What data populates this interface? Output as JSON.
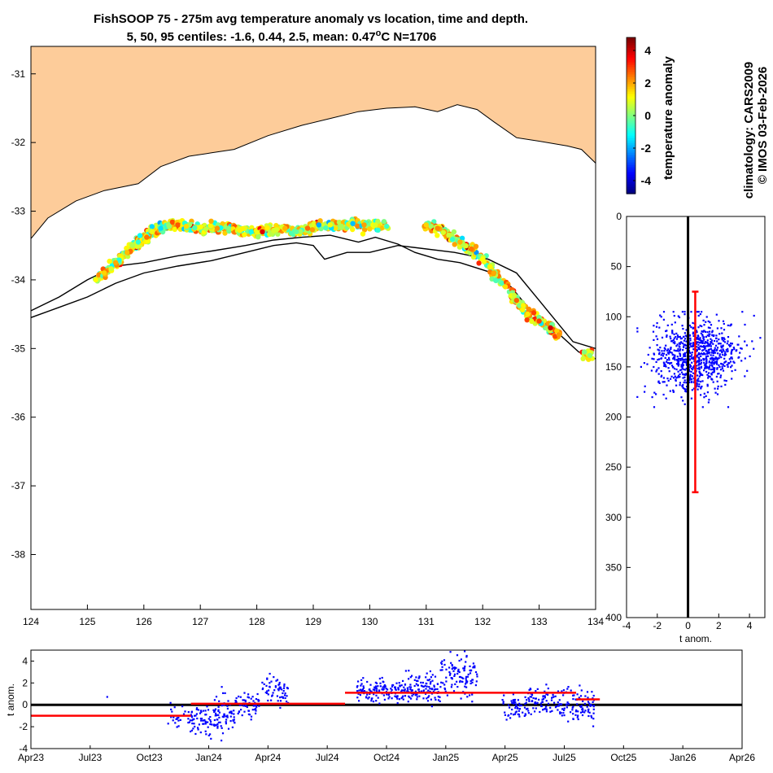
{
  "chart_data": [
    {
      "id": "map",
      "type": "scatter",
      "title": "FishSOOP 75 - 275m avg temperature anomaly vs location, time and depth.",
      "subtitle_prefix": "5, 50, 95 centiles: -1.6, 0.44, 2.5, mean: 0.47",
      "subtitle_sup": "o",
      "subtitle_suffix": "C N=1706",
      "xlabel": "",
      "ylabel": "",
      "xlim": [
        124,
        134
      ],
      "ylim": [
        -38.8,
        -30.6
      ],
      "xticks": [
        "124",
        "125",
        "126",
        "127",
        "128",
        "129",
        "130",
        "131",
        "132",
        "133",
        "134"
      ],
      "yticks": [
        "-31",
        "-32",
        "-33",
        "-34",
        "-35",
        "-36",
        "-37",
        "-38"
      ],
      "land_color": "#fdcc9a",
      "coastline": [
        [
          124,
          -33.4
        ],
        [
          124.3,
          -33.1
        ],
        [
          124.8,
          -32.85
        ],
        [
          125.3,
          -32.7
        ],
        [
          125.9,
          -32.6
        ],
        [
          126.3,
          -32.35
        ],
        [
          126.8,
          -32.2
        ],
        [
          127.2,
          -32.15
        ],
        [
          127.6,
          -32.1
        ],
        [
          128.2,
          -31.9
        ],
        [
          128.8,
          -31.75
        ],
        [
          129.3,
          -31.65
        ],
        [
          129.8,
          -31.55
        ],
        [
          130.3,
          -31.5
        ],
        [
          130.8,
          -31.48
        ],
        [
          131.2,
          -31.55
        ],
        [
          131.55,
          -31.45
        ],
        [
          131.9,
          -31.52
        ],
        [
          132.2,
          -31.7
        ],
        [
          132.6,
          -31.93
        ],
        [
          133.0,
          -31.98
        ],
        [
          133.5,
          -32.05
        ],
        [
          133.75,
          -32.1
        ],
        [
          134,
          -32.3
        ]
      ],
      "shelf_contour": [
        [
          124,
          -34.45
        ],
        [
          124.5,
          -34.25
        ],
        [
          125,
          -34.0
        ],
        [
          125.5,
          -33.8
        ],
        [
          126,
          -33.75
        ],
        [
          126.6,
          -33.65
        ],
        [
          127.2,
          -33.58
        ],
        [
          127.8,
          -33.5
        ],
        [
          128.3,
          -33.42
        ],
        [
          128.8,
          -33.38
        ],
        [
          129.3,
          -33.35
        ],
        [
          129.8,
          -33.45
        ],
        [
          130.1,
          -33.38
        ],
        [
          130.5,
          -33.48
        ],
        [
          130.8,
          -33.6
        ],
        [
          131.2,
          -33.7
        ],
        [
          131.6,
          -33.75
        ],
        [
          132.1,
          -33.88
        ],
        [
          132.5,
          -34.1
        ],
        [
          132.9,
          -34.5
        ],
        [
          133.3,
          -34.75
        ],
        [
          133.7,
          -35.05
        ],
        [
          134,
          -35.15
        ]
      ],
      "slope_contour": [
        [
          124,
          -34.55
        ],
        [
          124.5,
          -34.4
        ],
        [
          125,
          -34.25
        ],
        [
          125.5,
          -34.05
        ],
        [
          126,
          -33.9
        ],
        [
          126.6,
          -33.8
        ],
        [
          127.2,
          -33.72
        ],
        [
          127.8,
          -33.6
        ],
        [
          128.3,
          -33.5
        ],
        [
          128.7,
          -33.46
        ],
        [
          129,
          -33.5
        ],
        [
          129.2,
          -33.7
        ],
        [
          129.6,
          -33.6
        ],
        [
          130,
          -33.6
        ],
        [
          130.5,
          -33.5
        ],
        [
          131.5,
          -33.6
        ],
        [
          132.1,
          -33.7
        ],
        [
          132.6,
          -33.9
        ],
        [
          133.0,
          -34.3
        ],
        [
          133.3,
          -34.6
        ],
        [
          133.6,
          -34.9
        ],
        [
          134,
          -35.0
        ]
      ],
      "points": [
        [
          125.15,
          -34.0,
          1.2
        ],
        [
          125.3,
          -33.9,
          1.6
        ],
        [
          125.5,
          -33.75,
          2.0
        ],
        [
          125.7,
          -33.6,
          1.8
        ],
        [
          125.8,
          -33.5,
          0.5
        ],
        [
          125.9,
          -33.45,
          -0.8
        ],
        [
          126.05,
          -33.38,
          2.5
        ],
        [
          126.15,
          -33.3,
          1.0
        ],
        [
          126.3,
          -33.25,
          -1.5
        ],
        [
          126.45,
          -33.22,
          0.2
        ],
        [
          126.6,
          -33.2,
          2.8
        ],
        [
          126.75,
          -33.22,
          1.5
        ],
        [
          126.9,
          -33.24,
          -0.5
        ],
        [
          127.1,
          -33.26,
          0.6
        ],
        [
          127.3,
          -33.25,
          2.2
        ],
        [
          127.5,
          -33.25,
          0.0
        ],
        [
          127.7,
          -33.28,
          1.3
        ],
        [
          127.9,
          -33.3,
          -1.0
        ],
        [
          128.1,
          -33.3,
          3.9
        ],
        [
          128.3,
          -33.28,
          0.8
        ],
        [
          128.5,
          -33.25,
          1.9
        ],
        [
          128.7,
          -33.3,
          -0.3
        ],
        [
          128.9,
          -33.25,
          2.6
        ],
        [
          129.1,
          -33.2,
          -2.0
        ],
        [
          129.3,
          -33.2,
          1.1
        ],
        [
          129.5,
          -33.22,
          0.4
        ],
        [
          129.7,
          -33.18,
          -1.8
        ],
        [
          129.9,
          -33.2,
          2.1
        ],
        [
          130.1,
          -33.2,
          0.9
        ],
        [
          130.3,
          -33.22,
          -0.6
        ],
        [
          131.0,
          -33.2,
          1.6
        ],
        [
          131.2,
          -33.25,
          2.3
        ],
        [
          131.4,
          -33.35,
          0.7
        ],
        [
          131.6,
          -33.45,
          1.9
        ],
        [
          131.8,
          -33.55,
          2.5
        ],
        [
          132.0,
          -33.7,
          1.2
        ],
        [
          132.2,
          -33.9,
          2.0
        ],
        [
          132.4,
          -34.1,
          1.5
        ],
        [
          132.6,
          -34.3,
          2.7
        ],
        [
          132.8,
          -34.5,
          1.4
        ],
        [
          133.0,
          -34.6,
          3.0
        ],
        [
          133.2,
          -34.7,
          4.0
        ],
        [
          133.35,
          -34.8,
          2.2
        ],
        [
          133.8,
          -35.05,
          0.0
        ],
        [
          133.9,
          -35.1,
          0.1
        ]
      ],
      "colorbar": {
        "label": "temperature anomaly",
        "range": [
          -4.8,
          4.8
        ],
        "ticks": [
          "4",
          "2",
          "0",
          "-2",
          "-4"
        ]
      }
    },
    {
      "id": "depth",
      "type": "scatter",
      "xlabel": "t anom.",
      "ylabel": "",
      "xlim": [
        -4,
        5
      ],
      "ylim": [
        400,
        0
      ],
      "xticks": [
        "-4",
        "-2",
        "0",
        "2",
        "4"
      ],
      "yticks": [
        "0",
        "50",
        "100",
        "150",
        "200",
        "250",
        "300",
        "350",
        "400"
      ],
      "vertical_line_at": 0,
      "mean_anomaly": 0.47,
      "depth_range_bar": [
        75,
        275
      ],
      "points_summary": {
        "depth_min": 95,
        "depth_max": 190,
        "anom_min": -3.3,
        "anom_max": 4.7
      }
    },
    {
      "id": "timeseries",
      "type": "scatter",
      "xlabel": "",
      "ylabel": "t anom.",
      "xlim": [
        "Apr23",
        "Apr26"
      ],
      "ylim": [
        -4,
        5
      ],
      "xticks": [
        "Apr23",
        "Jul23",
        "Oct23",
        "Jan24",
        "Apr24",
        "Jul24",
        "Oct24",
        "Jan25",
        "Apr25",
        "Jul25",
        "Oct25",
        "Jan26",
        "Apr26"
      ],
      "yticks": [
        "4",
        "2",
        "0",
        "-2",
        "-4"
      ],
      "zero_line": true,
      "period_means": [
        {
          "start": 0,
          "end": 2.7,
          "value": -1.0
        },
        {
          "start": 2.7,
          "end": 5.3,
          "value": 0.1
        },
        {
          "start": 5.3,
          "end": 8.0,
          "value": 1.1
        },
        {
          "start": 8.0,
          "end": 9.2,
          "value": 1.1
        },
        {
          "start": 9.2,
          "end": 9.6,
          "value": 0.5
        }
      ],
      "clusters": [
        {
          "t0": 1.27,
          "t1": 1.3,
          "mean": 0.8,
          "sd": 0.1,
          "n": 1
        },
        {
          "t0": 2.28,
          "t1": 2.65,
          "mean": -1.1,
          "sd": 0.5,
          "n": 20
        },
        {
          "t0": 2.65,
          "t1": 3.1,
          "mean": -1.4,
          "sd": 0.7,
          "n": 70
        },
        {
          "t0": 3.1,
          "t1": 3.45,
          "mean": -0.9,
          "sd": 0.8,
          "n": 70
        },
        {
          "t0": 3.45,
          "t1": 3.85,
          "mean": 0.1,
          "sd": 0.6,
          "n": 60
        },
        {
          "t0": 3.9,
          "t1": 4.35,
          "mean": 1.4,
          "sd": 0.7,
          "n": 60
        },
        {
          "t0": 5.5,
          "t1": 6.3,
          "mean": 1.3,
          "sd": 0.5,
          "n": 130
        },
        {
          "t0": 6.3,
          "t1": 6.9,
          "mean": 1.5,
          "sd": 0.6,
          "n": 110
        },
        {
          "t0": 6.9,
          "t1": 7.55,
          "mean": 2.6,
          "sd": 1.0,
          "n": 110
        },
        {
          "t0": 7.95,
          "t1": 8.4,
          "mean": -0.1,
          "sd": 0.5,
          "n": 60
        },
        {
          "t0": 8.4,
          "t1": 9.0,
          "mean": 0.3,
          "sd": 0.6,
          "n": 90
        },
        {
          "t0": 9.0,
          "t1": 9.5,
          "mean": 0.0,
          "sd": 0.7,
          "n": 80
        }
      ]
    }
  ],
  "side_text": {
    "line1": "climatology: CARS2009",
    "line2": "© IMOS 03-Feb-2026"
  }
}
